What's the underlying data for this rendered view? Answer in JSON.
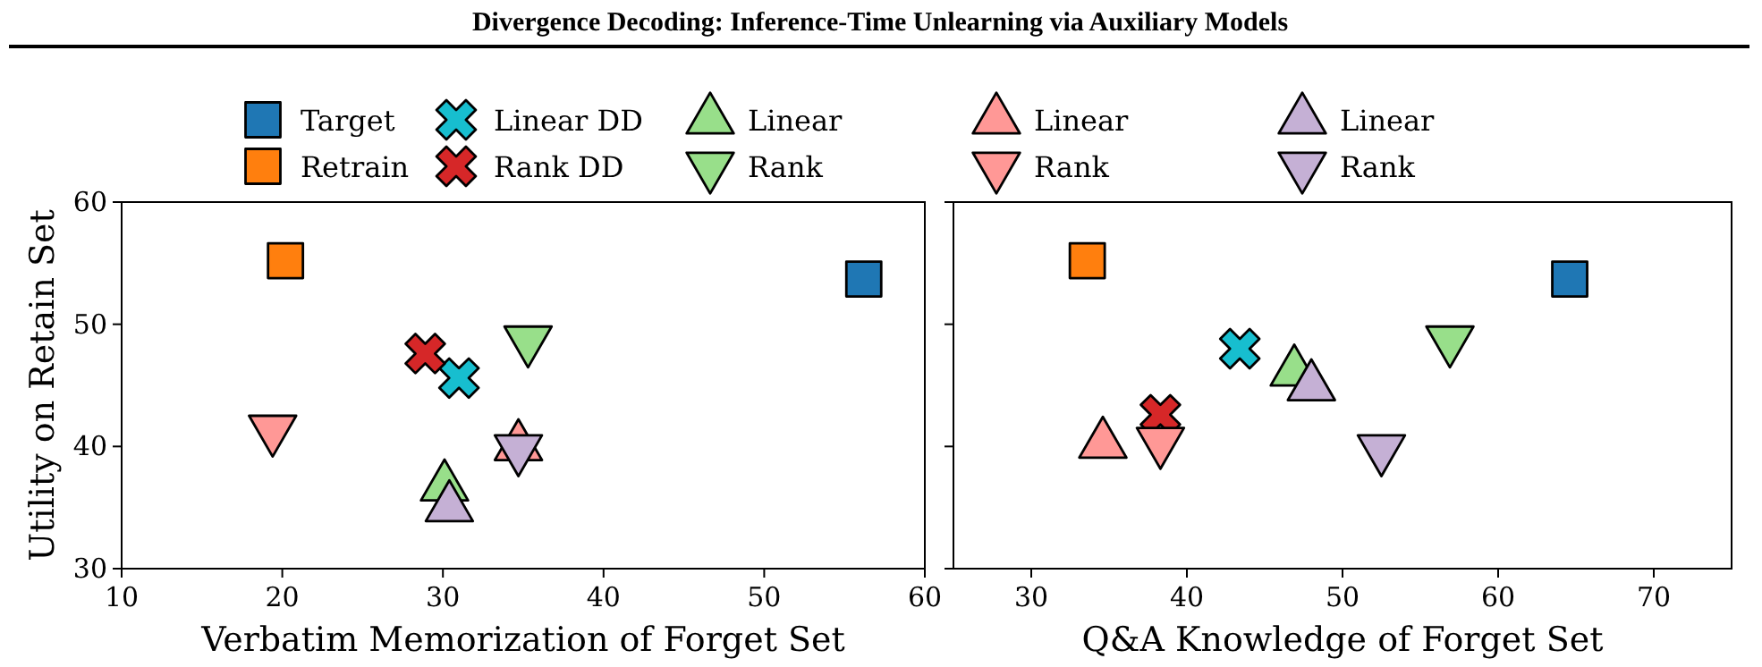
{
  "chart_data": [
    {
      "type": "scatter",
      "title": "Divergence Decoding: Inference-Time Unlearning via Auxiliary Models",
      "xlabel": "Verbatim Memorization of Forget Set",
      "ylabel": "Utility on Retain Set",
      "xlim": [
        10,
        60
      ],
      "xticks": [
        10,
        20,
        30,
        40,
        50,
        60
      ],
      "ylim": [
        30,
        60
      ],
      "yticks": [
        30,
        40,
        50,
        60
      ],
      "grid": false,
      "legend": "top",
      "series": [
        {
          "name": "Target",
          "color": "#1f77b4",
          "marker": "square",
          "x": [
            56.2
          ],
          "values": [
            53.7
          ]
        },
        {
          "name": "Retrain",
          "color": "#ff7f0e",
          "marker": "square",
          "x": [
            20.2
          ],
          "values": [
            55.2
          ]
        },
        {
          "name": "Linear DD",
          "color": "#17becf",
          "marker": "cross",
          "x": [
            31.0
          ],
          "values": [
            45.6
          ]
        },
        {
          "name": "Rank DD",
          "color": "#d62728",
          "marker": "cross",
          "x": [
            28.9
          ],
          "values": [
            47.6
          ]
        },
        {
          "name": "Linear",
          "color": "#98df8a",
          "marker": "triangle",
          "x": [
            30.1
          ],
          "values": [
            36.7
          ]
        },
        {
          "name": "Rank",
          "color": "#98df8a",
          "marker": "triangle-down",
          "x": [
            35.3
          ],
          "values": [
            48.7
          ]
        },
        {
          "name": "Linear",
          "color": "#ff9896",
          "marker": "triangle",
          "x": [
            34.7
          ],
          "values": [
            40.0
          ]
        },
        {
          "name": "Rank",
          "color": "#ff9896",
          "marker": "triangle-down",
          "x": [
            19.4
          ],
          "values": [
            41.4
          ]
        },
        {
          "name": "Linear",
          "color": "#c5b0d5",
          "marker": "triangle",
          "x": [
            30.4
          ],
          "values": [
            35.0
          ]
        },
        {
          "name": "Rank",
          "color": "#c5b0d5",
          "marker": "triangle-down",
          "x": [
            34.7
          ],
          "values": [
            39.8
          ]
        }
      ]
    },
    {
      "type": "scatter",
      "xlabel": "Q&A Knowledge of Forget Set",
      "xlim": [
        25,
        75
      ],
      "xticks": [
        30,
        40,
        50,
        60,
        70
      ],
      "ylim": [
        30,
        60
      ],
      "yticks": [
        30,
        40,
        50,
        60
      ],
      "tick_labels": "x",
      "grid": false,
      "series": [
        {
          "color": "#1f77b4",
          "marker": "square",
          "x": [
            64.6
          ],
          "values": [
            53.7
          ]
        },
        {
          "color": "#ff7f0e",
          "marker": "square",
          "x": [
            33.6
          ],
          "values": [
            55.2
          ]
        },
        {
          "color": "#17becf",
          "marker": "cross",
          "x": [
            43.4
          ],
          "values": [
            48.0
          ]
        },
        {
          "color": "#d62728",
          "marker": "cross",
          "x": [
            38.3
          ],
          "values": [
            42.6
          ]
        },
        {
          "color": "#98df8a",
          "marker": "triangle",
          "x": [
            46.9
          ],
          "values": [
            46.1
          ]
        },
        {
          "color": "#98df8a",
          "marker": "triangle-down",
          "x": [
            56.9
          ],
          "values": [
            48.7
          ]
        },
        {
          "color": "#ff9896",
          "marker": "triangle",
          "x": [
            34.6
          ],
          "values": [
            40.2
          ]
        },
        {
          "color": "#ff9896",
          "marker": "triangle-down",
          "x": [
            38.3
          ],
          "values": [
            40.4
          ]
        },
        {
          "color": "#c5b0d5",
          "marker": "triangle",
          "x": [
            48.0
          ],
          "values": [
            44.9
          ]
        },
        {
          "color": "#c5b0d5",
          "marker": "triangle-down",
          "x": [
            52.5
          ],
          "values": [
            39.8
          ]
        }
      ]
    }
  ]
}
